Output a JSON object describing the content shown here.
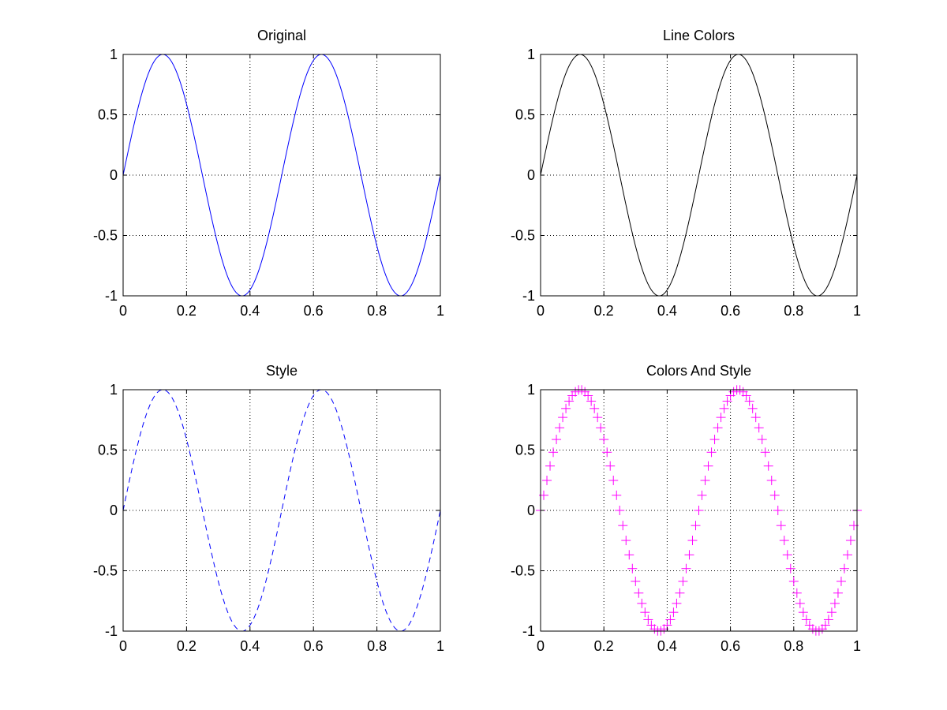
{
  "chart_data": [
    {
      "type": "line",
      "title": "Original",
      "xlim": [
        0,
        1
      ],
      "ylim": [
        -1,
        1
      ],
      "xticks": [
        0,
        0.2,
        0.4,
        0.6,
        0.8,
        1
      ],
      "xtick_labels": [
        "0",
        "0.2",
        "0.4",
        "0.6",
        "0.8",
        "1"
      ],
      "yticks": [
        -1,
        -0.5,
        0,
        0.5,
        1
      ],
      "ytick_labels": [
        "-1",
        "-0.5",
        "0",
        "0.5",
        "1"
      ],
      "grid": true,
      "series": [
        {
          "function": "sin(2*pi*2*x)",
          "x_range": [
            0,
            1
          ],
          "samples": 101,
          "color": "#0000ff",
          "line_style": "solid",
          "marker": "none"
        }
      ]
    },
    {
      "type": "line",
      "title": "Line Colors",
      "xlim": [
        0,
        1
      ],
      "ylim": [
        -1,
        1
      ],
      "xticks": [
        0,
        0.2,
        0.4,
        0.6,
        0.8,
        1
      ],
      "xtick_labels": [
        "0",
        "0.2",
        "0.4",
        "0.6",
        "0.8",
        "1"
      ],
      "yticks": [
        -1,
        -0.5,
        0,
        0.5,
        1
      ],
      "ytick_labels": [
        "-1",
        "-0.5",
        "0",
        "0.5",
        "1"
      ],
      "grid": true,
      "series": [
        {
          "function": "sin(2*pi*2*x)",
          "x_range": [
            0,
            1
          ],
          "samples": 101,
          "color": "#000000",
          "line_style": "solid",
          "marker": "none"
        }
      ]
    },
    {
      "type": "line",
      "title": "Style",
      "xlim": [
        0,
        1
      ],
      "ylim": [
        -1,
        1
      ],
      "xticks": [
        0,
        0.2,
        0.4,
        0.6,
        0.8,
        1
      ],
      "xtick_labels": [
        "0",
        "0.2",
        "0.4",
        "0.6",
        "0.8",
        "1"
      ],
      "yticks": [
        -1,
        -0.5,
        0,
        0.5,
        1
      ],
      "ytick_labels": [
        "-1",
        "-0.5",
        "0",
        "0.5",
        "1"
      ],
      "grid": true,
      "series": [
        {
          "function": "sin(2*pi*2*x)",
          "x_range": [
            0,
            1
          ],
          "samples": 101,
          "color": "#0000ff",
          "line_style": "dashed",
          "marker": "none"
        }
      ]
    },
    {
      "type": "scatter",
      "title": "Colors And Style",
      "xlim": [
        0,
        1
      ],
      "ylim": [
        -1,
        1
      ],
      "xticks": [
        0,
        0.2,
        0.4,
        0.6,
        0.8,
        1
      ],
      "xtick_labels": [
        "0",
        "0.2",
        "0.4",
        "0.6",
        "0.8",
        "1"
      ],
      "yticks": [
        -1,
        -0.5,
        0,
        0.5,
        1
      ],
      "ytick_labels": [
        "-1",
        "-0.5",
        "0",
        "0.5",
        "1"
      ],
      "grid": true,
      "series": [
        {
          "function": "sin(2*pi*2*x)",
          "x_range": [
            0,
            1
          ],
          "samples": 101,
          "color": "#ff00ff",
          "line_style": "none",
          "marker": "plus"
        }
      ]
    }
  ]
}
